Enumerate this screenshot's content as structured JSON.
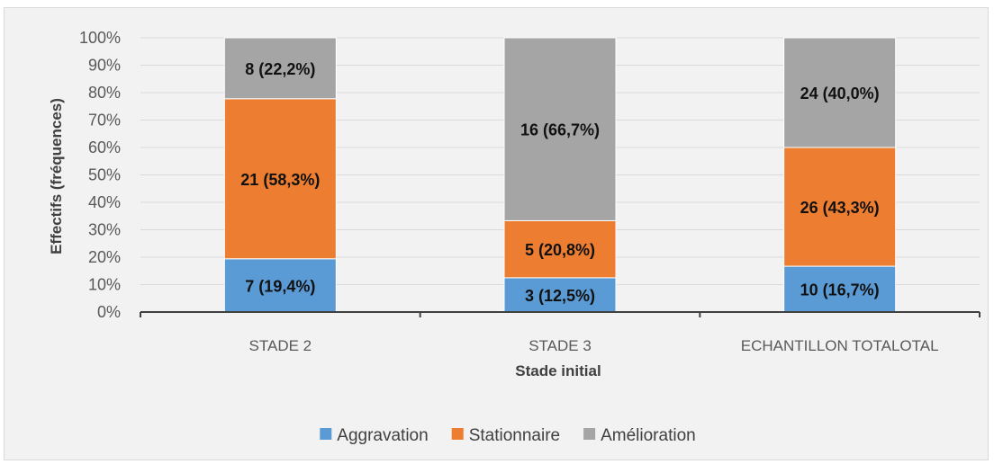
{
  "chart_data": {
    "type": "bar",
    "stacked": true,
    "percent_stacked": true,
    "categories": [
      "STADE 2",
      "STADE 3",
      "ECHANTILLON TOTALOTAL"
    ],
    "series": [
      {
        "name": "Aggravation",
        "color": "#5b9bd5",
        "values": [
          19.4,
          12.5,
          16.7
        ],
        "labels": [
          "7 (19,4%)",
          "3 (12,5%)",
          "10 (16,7%)"
        ]
      },
      {
        "name": "Stationnaire",
        "color": "#ed7d31",
        "values": [
          58.3,
          20.8,
          43.3
        ],
        "labels": [
          "21 (58,3%)",
          "5 (20,8%)",
          "26 (43,3%)"
        ]
      },
      {
        "name": "Amélioration",
        "color": "#a5a5a5",
        "values": [
          22.2,
          66.7,
          40.0
        ],
        "labels": [
          "8 (22,2%)",
          "16 (66,7%)",
          "24 (40,0%)"
        ]
      }
    ],
    "xlabel": "Stade initial",
    "ylabel": "Effectifs (fréquences)",
    "ylim": [
      0,
      100
    ],
    "yticks": [
      "0%",
      "10%",
      "20%",
      "30%",
      "40%",
      "50%",
      "60%",
      "70%",
      "80%",
      "90%",
      "100%"
    ],
    "grid": true,
    "legend_position": "bottom"
  }
}
